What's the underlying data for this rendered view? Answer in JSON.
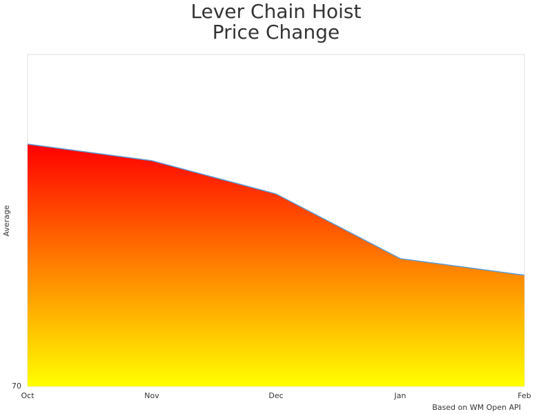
{
  "chart_data": {
    "type": "area",
    "title": [
      "Lever Chain Hoist",
      "Price Change"
    ],
    "y_label": "Average",
    "credits": "Based on WM Open API",
    "categories": [
      "Oct",
      "Nov",
      "Dec",
      "Jan",
      "Feb"
    ],
    "values": [
      84.6,
      83.6,
      81.6,
      77.7,
      76.7
    ],
    "line_color": "#5b9bd5",
    "gradient": [
      "#ff0000",
      "#ffff00"
    ],
    "ylim": [
      70,
      90
    ],
    "yticks": [
      70
    ],
    "grid": false
  }
}
